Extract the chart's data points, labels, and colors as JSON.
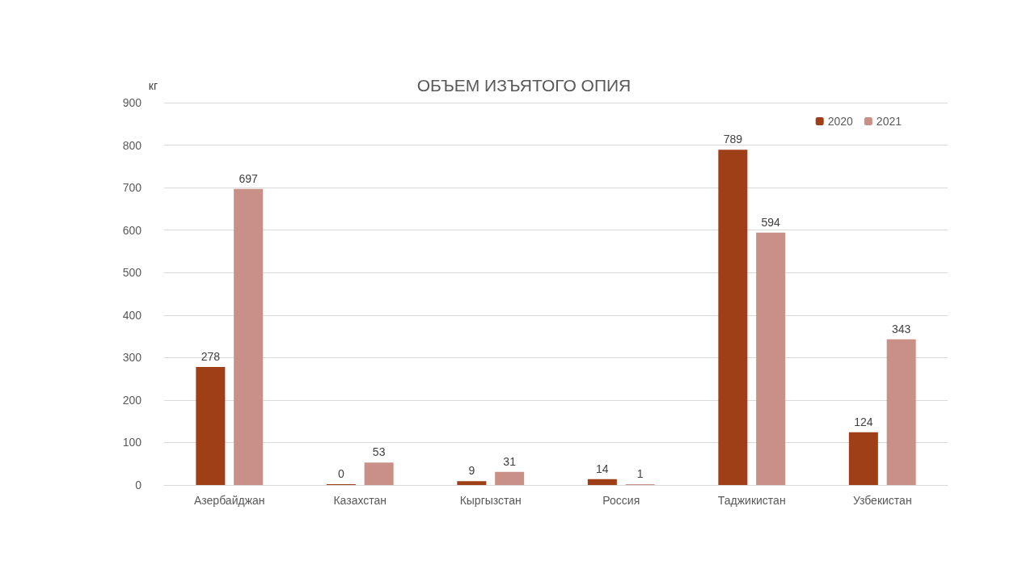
{
  "chart_data": {
    "type": "bar",
    "title": "ОБЪЕМ ИЗЪЯТОГО ОПИЯ",
    "ylabel": "кг",
    "categories": [
      "Азербайджан",
      "Казахстан",
      "Кыргызстан",
      "Россия",
      "Таджикистан",
      "Узбекистан"
    ],
    "series": [
      {
        "name": "2020",
        "color": "#9e3f17",
        "values": [
          278,
          0,
          9,
          14,
          789,
          124
        ]
      },
      {
        "name": "2021",
        "color": "#c99087",
        "values": [
          697,
          53,
          31,
          1,
          594,
          343
        ]
      }
    ],
    "ylim": [
      0,
      900
    ],
    "yticks": [
      0,
      100,
      200,
      300,
      400,
      500,
      600,
      700,
      800,
      900
    ],
    "grid": "y",
    "legend": "top right",
    "data_labels": true
  }
}
